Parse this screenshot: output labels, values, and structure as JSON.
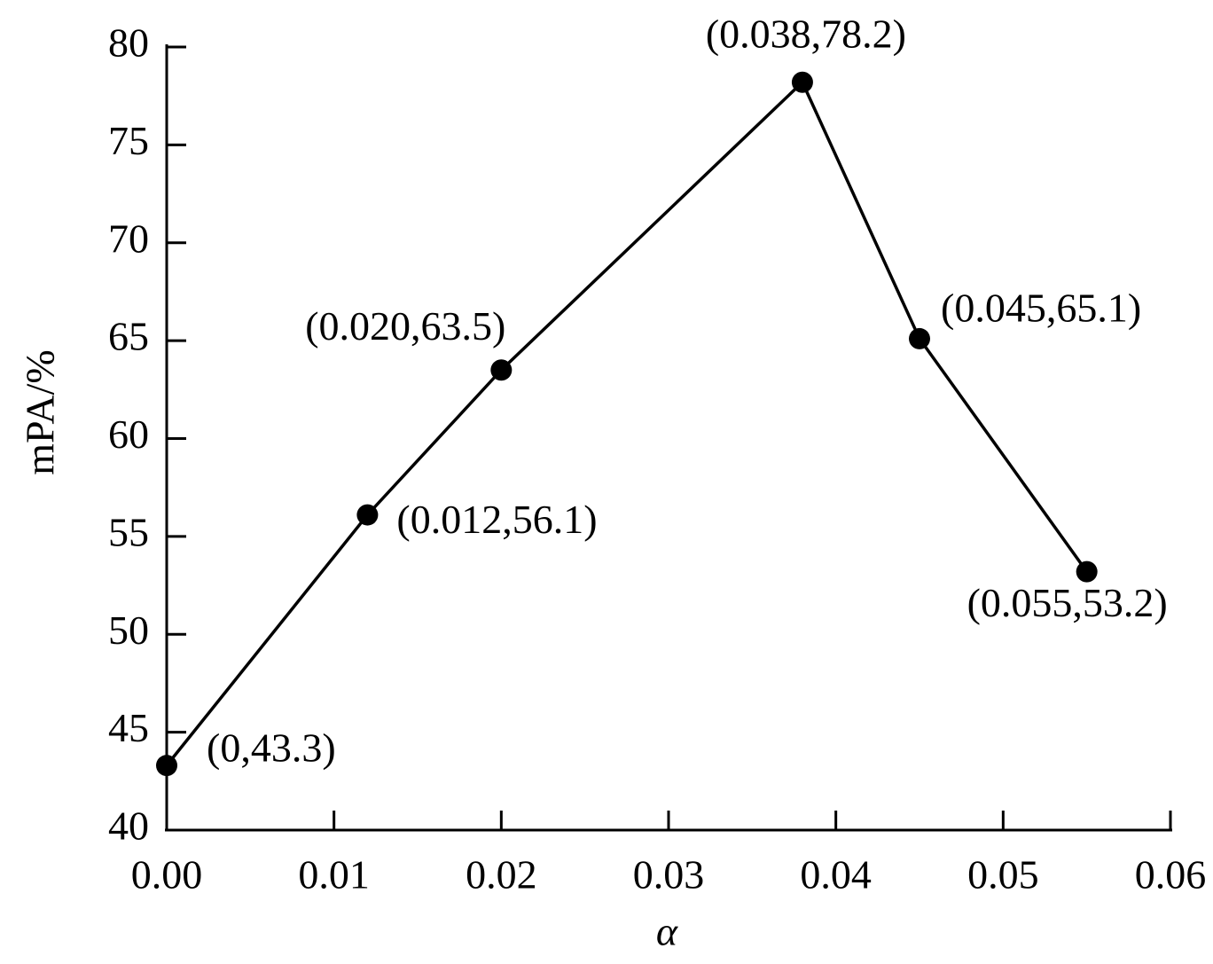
{
  "chart_data": {
    "type": "line",
    "x_label": "α",
    "y_label": "mPA/%",
    "x": [
      0,
      0.012,
      0.02,
      0.038,
      0.045,
      0.055
    ],
    "series": [
      {
        "color": "#000000",
        "values": [
          43.3,
          56.1,
          63.5,
          78.2,
          65.1,
          53.2
        ],
        "value_labels": [
          "(0,43.3)",
          "(0.012,56.1)",
          "(0.020,63.5)",
          "(0.038,78.2)",
          "(0.045,65.1)",
          "(0.055,53.2)"
        ]
      }
    ],
    "xlim": [
      0,
      0.06
    ],
    "xticks": [
      {
        "value": 0,
        "label": "0.00"
      },
      0.01,
      0.02,
      0.03,
      0.04,
      0.05,
      0.06
    ],
    "ylim": [
      40,
      80
    ],
    "yticks": [
      40,
      45,
      50,
      55,
      60,
      65,
      70,
      75,
      80
    ]
  }
}
